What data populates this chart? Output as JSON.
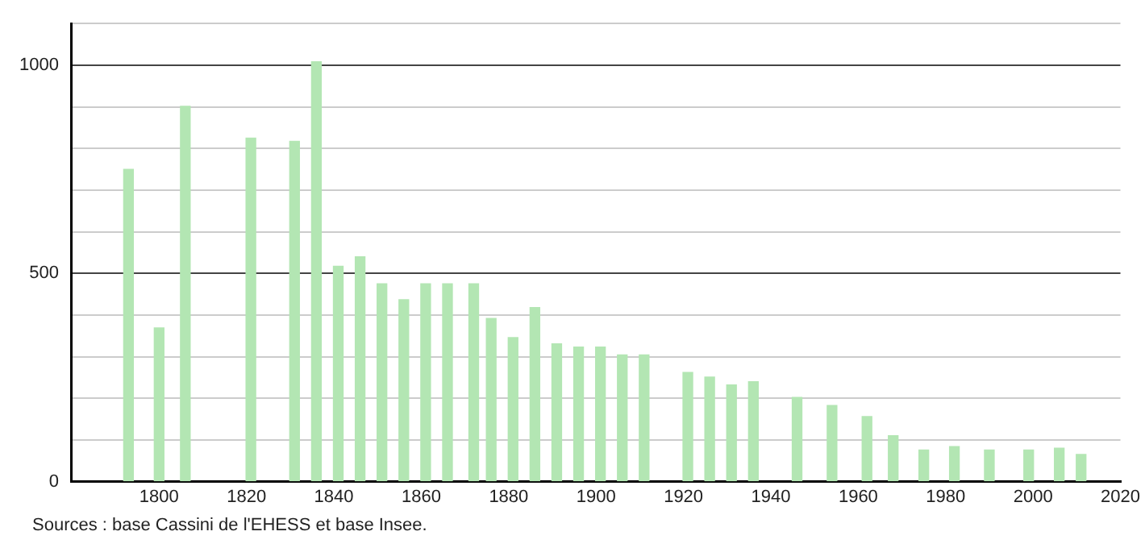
{
  "chart_data": {
    "type": "bar",
    "x": [
      1793,
      1800,
      1806,
      1821,
      1831,
      1836,
      1841,
      1846,
      1851,
      1856,
      1861,
      1866,
      1872,
      1876,
      1881,
      1886,
      1891,
      1896,
      1901,
      1906,
      1911,
      1921,
      1926,
      1931,
      1936,
      1946,
      1954,
      1962,
      1968,
      1975,
      1982,
      1990,
      1999,
      2006,
      2011
    ],
    "values": [
      750,
      369,
      901,
      825,
      817,
      1008,
      517,
      540,
      475,
      437,
      475,
      475,
      475,
      392,
      346,
      418,
      331,
      323,
      323,
      304,
      304,
      262,
      251,
      232,
      240,
      202,
      183,
      156,
      110,
      76,
      84,
      76,
      76,
      80,
      65
    ],
    "color": "#b3e6b3",
    "xlim": [
      1780,
      2020
    ],
    "xticks": [
      1800,
      1820,
      1840,
      1860,
      1880,
      1900,
      1920,
      1940,
      1960,
      1980,
      2000,
      2020
    ],
    "ylim": [
      0,
      1100
    ],
    "yticks": [
      0,
      {
        "value": 100,
        "label": null
      },
      {
        "value": 200,
        "label": null
      },
      {
        "value": 300,
        "label": null
      },
      {
        "value": 400,
        "label": null
      },
      500,
      {
        "value": 600,
        "label": null
      },
      {
        "value": 700,
        "label": null
      },
      {
        "value": 800,
        "label": null
      },
      {
        "value": 900,
        "label": null
      },
      1000,
      {
        "value": 1100,
        "label": null
      }
    ],
    "grid": "y",
    "legend": false,
    "annotations": [
      "Sources : base Cassini de l'EHESS et base Insee."
    ]
  }
}
